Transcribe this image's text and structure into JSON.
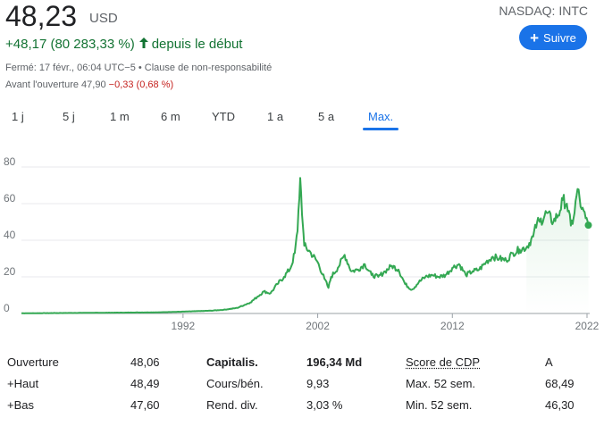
{
  "quote": {
    "price": "48,23",
    "currency": "USD",
    "ticker": "NASDAQ: INTC",
    "change": "+48,17 (80 283,33 %)",
    "since": "depuis le début",
    "closed_info": "Fermé: 17 févr., 06:04 UTC−5 •",
    "disclaimer": "Clause de non-responsabilité",
    "premarket_label": "Avant l'ouverture 47,90",
    "premarket_change": "−0,33 (0,68 %)",
    "change_color": "#137333",
    "negative_color": "#c5221f"
  },
  "follow_button": {
    "label": "Suivre",
    "icon": "plus-icon"
  },
  "tabs": [
    {
      "label": "1 j"
    },
    {
      "label": "5 j"
    },
    {
      "label": "1 m"
    },
    {
      "label": "6 m"
    },
    {
      "label": "YTD"
    },
    {
      "label": "1 a"
    },
    {
      "label": "5 a"
    },
    {
      "label": "Max.",
      "active": true
    }
  ],
  "chart_data": {
    "type": "line",
    "title": "",
    "xlabel": "",
    "ylabel": "",
    "ylim": [
      0,
      80
    ],
    "xlim": [
      1980,
      2022.2
    ],
    "yticks": [
      "80",
      "60",
      "40",
      "20",
      "0"
    ],
    "xticks": [
      "1992",
      "2002",
      "2012",
      "2022"
    ],
    "line_color": "#34a853",
    "grid": true,
    "series": [
      {
        "x": [
          1980,
          1984,
          1988,
          1990,
          1992,
          1994,
          1995,
          1996,
          1997,
          1997.5,
          1998,
          1998.5,
          1999,
          1999.5,
          2000,
          2000.3,
          2000.5,
          2000.7,
          2000.9,
          2001,
          2001.5,
          2002,
          2002.5,
          2002.8,
          2003,
          2003.5,
          2004,
          2004.5,
          2005,
          2005.5,
          2006,
          2006.5,
          2007,
          2007.5,
          2008,
          2008.5,
          2009,
          2009.5,
          2010,
          2010.5,
          2011,
          2011.5,
          2012,
          2012.5,
          2013,
          2013.5,
          2014,
          2014.5,
          2015,
          2015.5,
          2016,
          2016.5,
          2017,
          2017.5,
          2018,
          2018.3,
          2018.5,
          2019,
          2019.5,
          2020,
          2020.2,
          2020.5,
          2020.8,
          2021,
          2021.3,
          2021.6,
          2021.9,
          2022.1
        ],
        "y": [
          0.1,
          0.3,
          0.5,
          0.6,
          1,
          1.5,
          2,
          3,
          6,
          9,
          12,
          11,
          16,
          20,
          25,
          33,
          45,
          74,
          48,
          37,
          33,
          28,
          19,
          14,
          20,
          25,
          32,
          23,
          24,
          27,
          21,
          20,
          23,
          26,
          24,
          16,
          13,
          17,
          20,
          21,
          20,
          21,
          25,
          27,
          21,
          23,
          24,
          28,
          31,
          30,
          29,
          33,
          35,
          36,
          42,
          50,
          50,
          55,
          50,
          56,
          62,
          60,
          48,
          52,
          68,
          57,
          52,
          48.23
        ]
      }
    ]
  },
  "stats": {
    "col1": [
      {
        "label": "Ouverture",
        "value": "48,06"
      },
      {
        "label": "+Haut",
        "value": "48,49"
      },
      {
        "label": "+Bas",
        "value": "47,60"
      }
    ],
    "col2": [
      {
        "label": "Capitalis.",
        "value": "196,34 Md"
      },
      {
        "label": "Cours/bén.",
        "value": "9,93"
      },
      {
        "label": "Rend. div.",
        "value": "3,03 %"
      }
    ],
    "col3": [
      {
        "label": "Score de CDP",
        "value": "A"
      },
      {
        "label": "Max. 52 sem.",
        "value": "68,49"
      },
      {
        "label": "Min. 52 sem.",
        "value": "46,30"
      }
    ]
  }
}
